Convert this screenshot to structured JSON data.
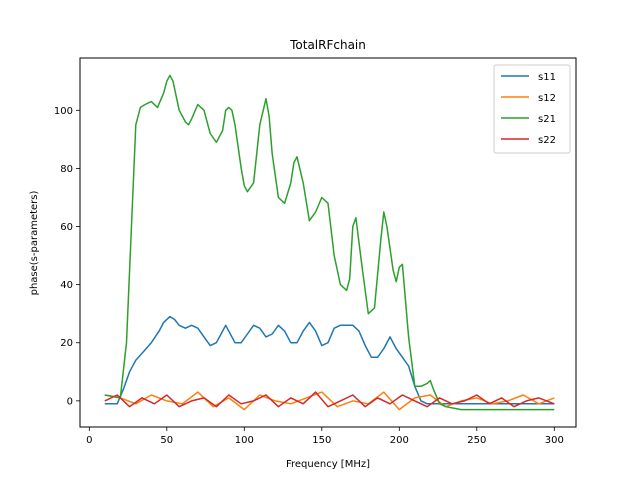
{
  "chart_data": {
    "type": "line",
    "title": "TotalRFchain",
    "xlabel": "Frequency [MHz]",
    "ylabel": "phase(s-parameters)",
    "xlim": [
      -6,
      314
    ],
    "ylim": [
      -9,
      118
    ],
    "xticks": [
      0,
      50,
      100,
      150,
      200,
      250,
      300
    ],
    "yticks": [
      0,
      20,
      40,
      60,
      80,
      100
    ],
    "legend_position": "top-right",
    "grid": false,
    "series": [
      {
        "name": "s11",
        "color": "#1f77b4",
        "x": [
          10,
          18,
          22,
          26,
          30,
          35,
          40,
          45,
          48,
          52,
          55,
          58,
          62,
          66,
          70,
          74,
          78,
          82,
          86,
          88,
          90,
          94,
          98,
          102,
          106,
          110,
          114,
          118,
          122,
          126,
          130,
          134,
          138,
          142,
          146,
          150,
          154,
          158,
          162,
          166,
          170,
          174,
          178,
          182,
          186,
          190,
          194,
          198,
          202,
          206,
          210,
          214,
          218,
          222,
          226,
          230,
          240,
          260,
          280,
          300
        ],
        "y": [
          -1,
          -1,
          4,
          10,
          14,
          17,
          20,
          24,
          27,
          29,
          28,
          26,
          25,
          26,
          25,
          22,
          19,
          20,
          24,
          26,
          24,
          20,
          20,
          23,
          26,
          25,
          22,
          23,
          26,
          24,
          20,
          20,
          24,
          27,
          24,
          19,
          20,
          25,
          26,
          26,
          26,
          24,
          19,
          15,
          15,
          18,
          22,
          18,
          15,
          12,
          5,
          0,
          -1,
          -1,
          -1,
          -1,
          -1,
          -1,
          -1,
          -1
        ]
      },
      {
        "name": "s12",
        "color": "#ff7f0e",
        "x": [
          10,
          20,
          30,
          40,
          50,
          60,
          70,
          80,
          90,
          100,
          110,
          120,
          130,
          140,
          150,
          160,
          170,
          180,
          190,
          200,
          210,
          220,
          230,
          240,
          250,
          260,
          270,
          280,
          290,
          300
        ],
        "y": [
          2,
          1,
          -1,
          2,
          0,
          -1,
          3,
          -2,
          1,
          -3,
          2,
          0,
          -1,
          1,
          3,
          -2,
          0,
          -1,
          3,
          -3,
          1,
          2,
          -2,
          0,
          1,
          -1,
          0,
          2,
          -1,
          1
        ]
      },
      {
        "name": "s21",
        "color": "#2ca02c",
        "x": [
          10,
          20,
          24,
          28,
          30,
          33,
          36,
          40,
          44,
          48,
          50,
          52,
          54,
          56,
          58,
          62,
          64,
          66,
          70,
          72,
          74,
          78,
          82,
          86,
          88,
          90,
          92,
          94,
          98,
          100,
          102,
          106,
          110,
          114,
          116,
          118,
          122,
          126,
          130,
          132,
          134,
          138,
          142,
          146,
          150,
          154,
          158,
          162,
          166,
          168,
          170,
          172,
          176,
          180,
          184,
          188,
          190,
          192,
          196,
          198,
          200,
          202,
          206,
          210,
          214,
          218,
          220,
          222,
          226,
          230,
          240,
          260,
          280,
          300
        ],
        "y": [
          2,
          1,
          20,
          70,
          95,
          101,
          102,
          103,
          101,
          106,
          110,
          112,
          110,
          105,
          100,
          96,
          95,
          97,
          102,
          101,
          100,
          92,
          89,
          93,
          100,
          101,
          100,
          95,
          80,
          74,
          72,
          75,
          95,
          104,
          98,
          85,
          70,
          68,
          75,
          82,
          84,
          75,
          62,
          65,
          70,
          68,
          50,
          40,
          38,
          42,
          60,
          63,
          46,
          30,
          32,
          55,
          65,
          60,
          45,
          41,
          46,
          47,
          22,
          5,
          5,
          6,
          7,
          4,
          -1,
          -2,
          -3,
          -3,
          -3,
          -3
        ]
      },
      {
        "name": "s22",
        "color": "#d62728",
        "x": [
          10,
          18,
          26,
          34,
          42,
          50,
          58,
          66,
          74,
          82,
          90,
          98,
          106,
          114,
          122,
          130,
          138,
          146,
          154,
          162,
          170,
          178,
          186,
          194,
          202,
          210,
          218,
          226,
          234,
          242,
          250,
          258,
          266,
          274,
          282,
          290,
          300
        ],
        "y": [
          0,
          2,
          -2,
          1,
          -1,
          2,
          -2,
          0,
          1,
          -2,
          2,
          -1,
          0,
          2,
          -2,
          1,
          -1,
          3,
          -2,
          0,
          2,
          -2,
          1,
          -1,
          2,
          0,
          -2,
          1,
          -1,
          0,
          2,
          -1,
          1,
          -2,
          0,
          1,
          -1
        ]
      }
    ]
  }
}
